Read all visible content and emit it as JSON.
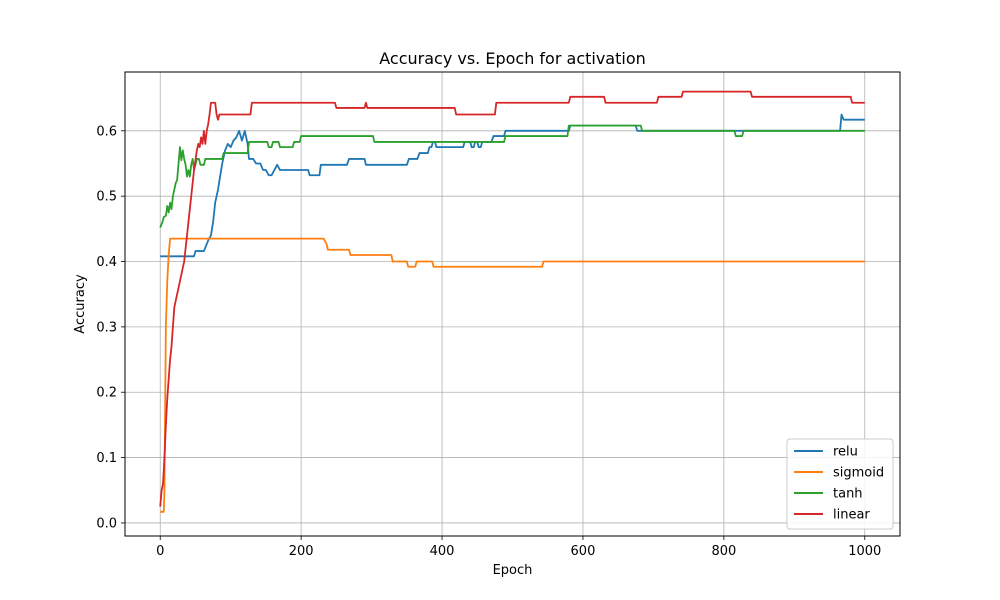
{
  "chart_data": {
    "type": "line",
    "title": "Accuracy vs. Epoch for activation",
    "xlabel": "Epoch",
    "ylabel": "Accuracy",
    "xlim": [
      -50,
      1050
    ],
    "ylim": [
      -0.02,
      0.69
    ],
    "xticks": [
      0,
      200,
      400,
      600,
      800,
      1000
    ],
    "yticks": [
      0.0,
      0.1,
      0.2,
      0.3,
      0.4,
      0.5,
      0.6
    ],
    "grid": true,
    "legend_position": "lower-right",
    "series": [
      {
        "name": "relu",
        "color": "#1f77b4",
        "points": [
          [
            0,
            0.408
          ],
          [
            48,
            0.408
          ],
          [
            50,
            0.416
          ],
          [
            62,
            0.416
          ],
          [
            65,
            0.424
          ],
          [
            68,
            0.432
          ],
          [
            72,
            0.44
          ],
          [
            75,
            0.46
          ],
          [
            78,
            0.49
          ],
          [
            82,
            0.51
          ],
          [
            85,
            0.53
          ],
          [
            88,
            0.55
          ],
          [
            92,
            0.57
          ],
          [
            96,
            0.58
          ],
          [
            100,
            0.575
          ],
          [
            104,
            0.585
          ],
          [
            108,
            0.59
          ],
          [
            112,
            0.6
          ],
          [
            116,
            0.585
          ],
          [
            120,
            0.6
          ],
          [
            124,
            0.58
          ],
          [
            126,
            0.557
          ],
          [
            132,
            0.557
          ],
          [
            136,
            0.55
          ],
          [
            142,
            0.55
          ],
          [
            146,
            0.54
          ],
          [
            150,
            0.54
          ],
          [
            154,
            0.532
          ],
          [
            158,
            0.532
          ],
          [
            162,
            0.54
          ],
          [
            166,
            0.548
          ],
          [
            170,
            0.54
          ],
          [
            210,
            0.54
          ],
          [
            212,
            0.532
          ],
          [
            226,
            0.532
          ],
          [
            228,
            0.548
          ],
          [
            265,
            0.548
          ],
          [
            268,
            0.557
          ],
          [
            290,
            0.557
          ],
          [
            292,
            0.548
          ],
          [
            350,
            0.548
          ],
          [
            353,
            0.557
          ],
          [
            365,
            0.557
          ],
          [
            368,
            0.566
          ],
          [
            380,
            0.566
          ],
          [
            382,
            0.575
          ],
          [
            385,
            0.575
          ],
          [
            387,
            0.583
          ],
          [
            390,
            0.583
          ],
          [
            392,
            0.575
          ],
          [
            430,
            0.575
          ],
          [
            432,
            0.583
          ],
          [
            440,
            0.583
          ],
          [
            442,
            0.575
          ],
          [
            445,
            0.575
          ],
          [
            447,
            0.583
          ],
          [
            450,
            0.583
          ],
          [
            452,
            0.575
          ],
          [
            455,
            0.575
          ],
          [
            457,
            0.583
          ],
          [
            470,
            0.583
          ],
          [
            473,
            0.592
          ],
          [
            488,
            0.592
          ],
          [
            490,
            0.6
          ],
          [
            580,
            0.6
          ],
          [
            582,
            0.608
          ],
          [
            675,
            0.608
          ],
          [
            677,
            0.6
          ],
          [
            965,
            0.6
          ],
          [
            967,
            0.625
          ],
          [
            970,
            0.617
          ],
          [
            1000,
            0.617
          ]
        ]
      },
      {
        "name": "sigmoid",
        "color": "#ff7f0e",
        "points": [
          [
            0,
            0.017
          ],
          [
            5,
            0.017
          ],
          [
            6,
            0.05
          ],
          [
            8,
            0.3
          ],
          [
            10,
            0.37
          ],
          [
            12,
            0.41
          ],
          [
            14,
            0.435
          ],
          [
            232,
            0.435
          ],
          [
            236,
            0.427
          ],
          [
            238,
            0.418
          ],
          [
            268,
            0.418
          ],
          [
            270,
            0.41
          ],
          [
            328,
            0.41
          ],
          [
            330,
            0.4
          ],
          [
            350,
            0.4
          ],
          [
            352,
            0.392
          ],
          [
            362,
            0.392
          ],
          [
            364,
            0.4
          ],
          [
            386,
            0.4
          ],
          [
            388,
            0.392
          ],
          [
            542,
            0.392
          ],
          [
            544,
            0.4
          ],
          [
            1000,
            0.4
          ]
        ]
      },
      {
        "name": "tanh",
        "color": "#2ca02c",
        "points": [
          [
            0,
            0.452
          ],
          [
            3,
            0.46
          ],
          [
            5,
            0.468
          ],
          [
            8,
            0.47
          ],
          [
            10,
            0.485
          ],
          [
            12,
            0.475
          ],
          [
            14,
            0.49
          ],
          [
            16,
            0.48
          ],
          [
            18,
            0.5
          ],
          [
            20,
            0.51
          ],
          [
            22,
            0.52
          ],
          [
            24,
            0.525
          ],
          [
            26,
            0.55
          ],
          [
            28,
            0.575
          ],
          [
            30,
            0.555
          ],
          [
            32,
            0.57
          ],
          [
            34,
            0.557
          ],
          [
            36,
            0.548
          ],
          [
            38,
            0.53
          ],
          [
            40,
            0.54
          ],
          [
            42,
            0.53
          ],
          [
            44,
            0.548
          ],
          [
            46,
            0.557
          ],
          [
            48,
            0.54
          ],
          [
            50,
            0.548
          ],
          [
            52,
            0.557
          ],
          [
            55,
            0.557
          ],
          [
            57,
            0.548
          ],
          [
            62,
            0.548
          ],
          [
            64,
            0.557
          ],
          [
            88,
            0.557
          ],
          [
            90,
            0.566
          ],
          [
            124,
            0.566
          ],
          [
            126,
            0.583
          ],
          [
            152,
            0.583
          ],
          [
            154,
            0.575
          ],
          [
            158,
            0.575
          ],
          [
            160,
            0.583
          ],
          [
            168,
            0.583
          ],
          [
            170,
            0.575
          ],
          [
            188,
            0.575
          ],
          [
            190,
            0.583
          ],
          [
            198,
            0.583
          ],
          [
            200,
            0.592
          ],
          [
            302,
            0.592
          ],
          [
            304,
            0.583
          ],
          [
            488,
            0.583
          ],
          [
            490,
            0.592
          ],
          [
            578,
            0.592
          ],
          [
            580,
            0.608
          ],
          [
            682,
            0.608
          ],
          [
            684,
            0.6
          ],
          [
            815,
            0.6
          ],
          [
            817,
            0.592
          ],
          [
            826,
            0.592
          ],
          [
            828,
            0.6
          ],
          [
            1000,
            0.6
          ]
        ]
      },
      {
        "name": "linear",
        "color": "#d62728",
        "points": [
          [
            0,
            0.025
          ],
          [
            2,
            0.05
          ],
          [
            4,
            0.06
          ],
          [
            6,
            0.1
          ],
          [
            8,
            0.15
          ],
          [
            10,
            0.19
          ],
          [
            12,
            0.22
          ],
          [
            14,
            0.25
          ],
          [
            16,
            0.27
          ],
          [
            18,
            0.3
          ],
          [
            20,
            0.33
          ],
          [
            22,
            0.34
          ],
          [
            24,
            0.35
          ],
          [
            26,
            0.36
          ],
          [
            28,
            0.37
          ],
          [
            30,
            0.38
          ],
          [
            32,
            0.39
          ],
          [
            34,
            0.4
          ],
          [
            36,
            0.42
          ],
          [
            38,
            0.44
          ],
          [
            40,
            0.46
          ],
          [
            42,
            0.48
          ],
          [
            44,
            0.5
          ],
          [
            46,
            0.52
          ],
          [
            48,
            0.54
          ],
          [
            50,
            0.555
          ],
          [
            52,
            0.57
          ],
          [
            54,
            0.58
          ],
          [
            56,
            0.575
          ],
          [
            58,
            0.59
          ],
          [
            60,
            0.58
          ],
          [
            62,
            0.6
          ],
          [
            64,
            0.58
          ],
          [
            66,
            0.6
          ],
          [
            68,
            0.61
          ],
          [
            70,
            0.625
          ],
          [
            72,
            0.643
          ],
          [
            78,
            0.643
          ],
          [
            80,
            0.625
          ],
          [
            82,
            0.617
          ],
          [
            84,
            0.625
          ],
          [
            128,
            0.625
          ],
          [
            130,
            0.643
          ],
          [
            248,
            0.643
          ],
          [
            250,
            0.635
          ],
          [
            290,
            0.635
          ],
          [
            292,
            0.643
          ],
          [
            294,
            0.635
          ],
          [
            418,
            0.635
          ],
          [
            420,
            0.625
          ],
          [
            475,
            0.625
          ],
          [
            477,
            0.643
          ],
          [
            580,
            0.643
          ],
          [
            582,
            0.652
          ],
          [
            630,
            0.652
          ],
          [
            632,
            0.643
          ],
          [
            705,
            0.643
          ],
          [
            707,
            0.652
          ],
          [
            740,
            0.652
          ],
          [
            742,
            0.66
          ],
          [
            838,
            0.66
          ],
          [
            840,
            0.652
          ],
          [
            980,
            0.652
          ],
          [
            982,
            0.643
          ],
          [
            1000,
            0.643
          ]
        ]
      }
    ]
  }
}
